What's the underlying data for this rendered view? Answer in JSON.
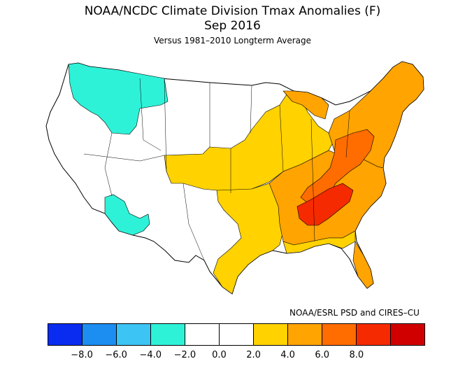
{
  "title": "NOAA/NCDC Climate Division Tmax Anomalies (F)",
  "period": "Sep 2016",
  "subtitle": "Versus 1981–2010 Longterm Average",
  "credit": "NOAA/ESRL PSD and CIRES–CU",
  "colorbar": {
    "colors": [
      "#0a2cf0",
      "#1c8ef2",
      "#3cc4f4",
      "#2ef2d8",
      "#ffffff",
      "#ffffff",
      "#ffd200",
      "#ffa400",
      "#ff6c00",
      "#f52a00",
      "#d10000"
    ],
    "ticks": [
      "−8.0",
      "−6.0",
      "−4.0",
      "−2.0",
      "0.0",
      "2.0",
      "4.0",
      "6.0",
      "8.0"
    ]
  },
  "map_regions": [
    {
      "name": "pacific-northwest-cool",
      "anomaly": "-2 to -4",
      "color": "#2ef2d8"
    },
    {
      "name": "arizona-cool",
      "anomaly": "-2 to -4",
      "color": "#2ef2d8"
    },
    {
      "name": "plains-warm",
      "anomaly": "2 to 4",
      "color": "#ffd200"
    },
    {
      "name": "northeast-warm",
      "anomaly": "4 to 6",
      "color": "#ffa400"
    },
    {
      "name": "tennessee-valley-hot",
      "anomaly": "6 to 8",
      "color": "#ff6c00"
    }
  ]
}
